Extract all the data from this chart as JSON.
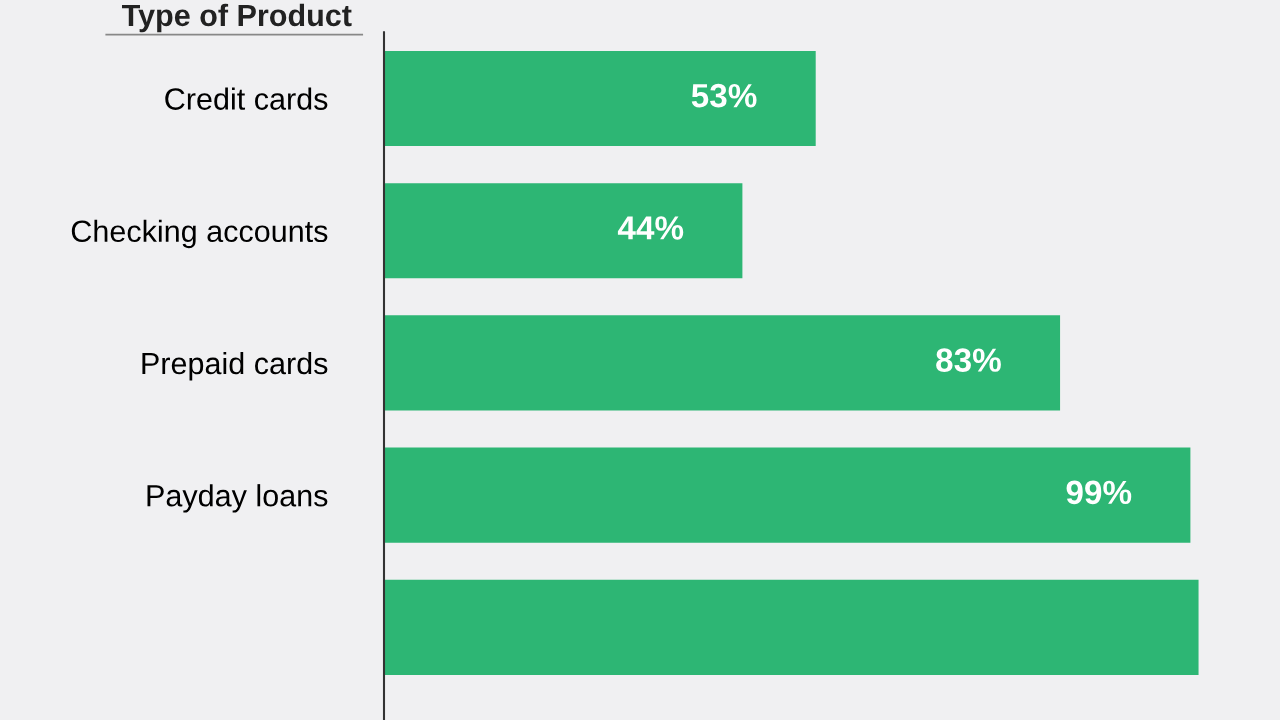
{
  "chart_data": {
    "type": "bar",
    "orientation": "horizontal",
    "ylabel": "Type of Product",
    "categories": [
      "Credit cards",
      "Checking accounts",
      "Prepaid cards",
      "Payday loans",
      null
    ],
    "values": [
      53,
      44,
      83,
      99,
      100
    ],
    "value_labels": [
      "53%",
      "44%",
      "83%",
      "99%",
      null
    ],
    "color": "#2db674",
    "xlim": [
      0,
      110
    ],
    "tick_labels": "y",
    "grid": false,
    "legend": false
  }
}
